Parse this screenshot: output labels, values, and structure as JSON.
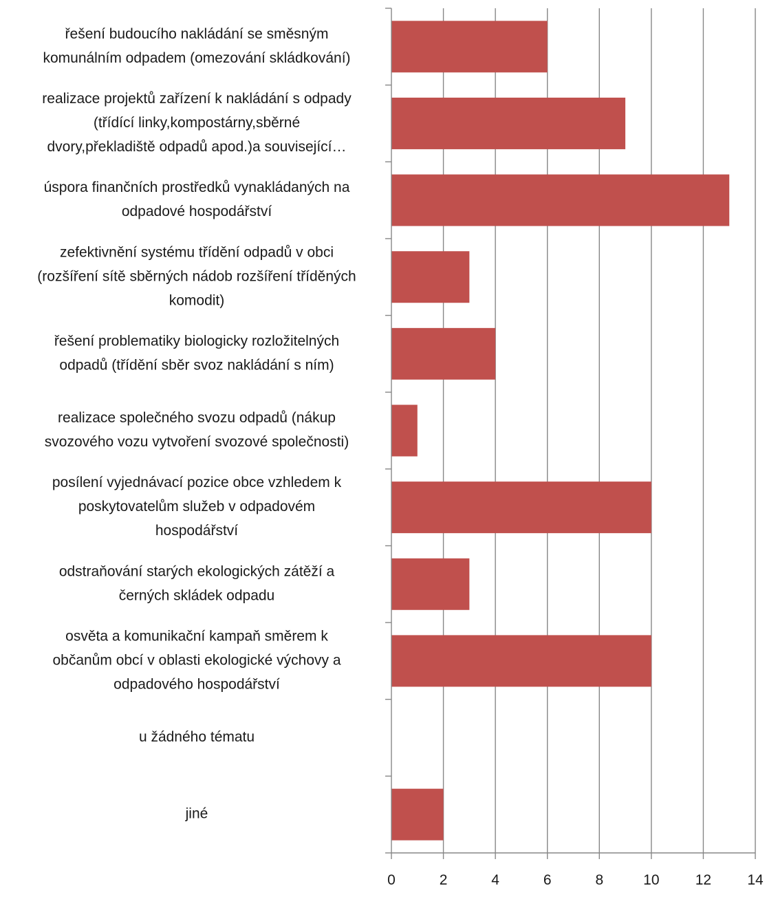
{
  "chart_data": {
    "type": "bar",
    "orientation": "horizontal",
    "title": "",
    "xlabel": "",
    "ylabel": "",
    "xlim": [
      0,
      14
    ],
    "x_ticks": [
      0,
      2,
      4,
      6,
      8,
      10,
      12,
      14
    ],
    "grid": "vertical-major",
    "legend": "none",
    "bar_color": "#c0504d",
    "categories": [
      [
        "řešení budoucího nakládání se směsným",
        "komunálním odpadem (omezování skládkování)"
      ],
      [
        "realizace projektů zařízení k nakládání s odpady",
        "(třídící linky,kompostárny,sběrné",
        "dvory,překladiště odpadů apod.)a související…"
      ],
      [
        "úspora finančních prostředků vynakládaných na",
        "odpadové hospodářství"
      ],
      [
        "zefektivnění systému třídění odpadů v obci",
        "(rozšíření sítě sběrných nádob rozšíření tříděných",
        "komodit)"
      ],
      [
        "řešení problematiky biologicky rozložitelných",
        "odpadů (třídění sběr svoz nakládání s ním)"
      ],
      [
        "realizace společného svozu odpadů (nákup",
        "svozového vozu vytvoření svozové společnosti)"
      ],
      [
        "posílení vyjednávací pozice obce vzhledem k",
        "poskytovatelům služeb v odpadovém",
        "hospodářství"
      ],
      [
        "odstraňování starých ekologických zátěží a",
        "černých skládek odpadu"
      ],
      [
        "osvěta a komunikační kampaň směrem k",
        "občanům obcí v oblasti ekologické výchovy a",
        "odpadového hospodářství"
      ],
      [
        "u žádného tématu"
      ],
      [
        "jiné"
      ]
    ],
    "values": [
      6,
      9,
      13,
      3,
      4,
      1,
      10,
      3,
      10,
      0,
      2
    ]
  }
}
